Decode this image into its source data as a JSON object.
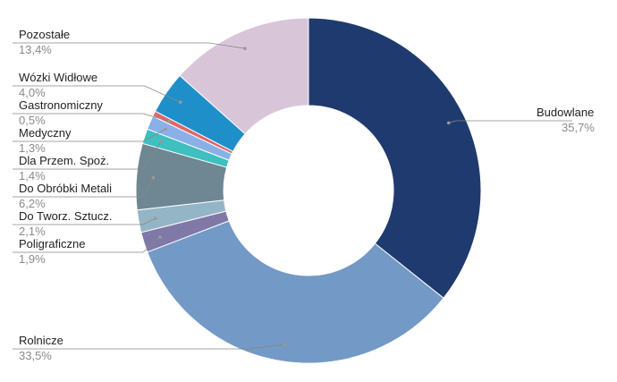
{
  "chart_data": {
    "type": "pie",
    "donut": true,
    "title": "",
    "categories": [
      "Budowlane",
      "Rolnicze",
      "Poligraficzne",
      "Do Tworz. Sztucz.",
      "Do Obróbki Metali",
      "Dla Przem. Spoż.",
      "Medyczny",
      "Gastronomiczny",
      "Wózki Widłowe",
      "Pozostałe"
    ],
    "values": [
      35.7,
      33.5,
      1.9,
      2.1,
      6.2,
      1.4,
      1.3,
      0.5,
      4.0,
      13.4
    ],
    "value_labels": [
      "35,7%",
      "33,5%",
      "1,9%",
      "2,1%",
      "6,2%",
      "1,4%",
      "1,3%",
      "0,5%",
      "4,0%",
      "13,4%"
    ],
    "colors": [
      "#1f3a6e",
      "#7399c6",
      "#8079a8",
      "#93b5c6",
      "#6e8792",
      "#3fbfbf",
      "#8ab0e8",
      "#e06666",
      "#1f8fc9",
      "#d8c6d8"
    ],
    "start_angle": "12 o'clock",
    "direction": "clockwise",
    "legend": "none",
    "data_labels": "outside with leader lines"
  }
}
